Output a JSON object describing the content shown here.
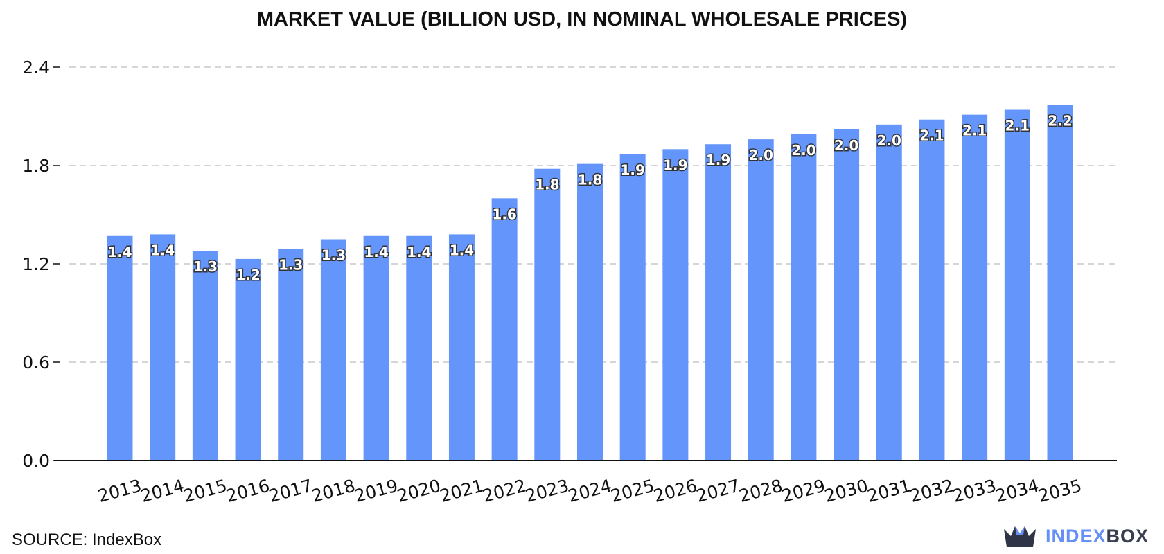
{
  "chart_data": {
    "type": "bar",
    "title": "MARKET VALUE (BILLION USD, IN NOMINAL WHOLESALE PRICES)",
    "categories": [
      "2013",
      "2014",
      "2015",
      "2016",
      "2017",
      "2018",
      "2019",
      "2020",
      "2021",
      "2022",
      "2023",
      "2024",
      "2025",
      "2026",
      "2027",
      "2028",
      "2029",
      "2030",
      "2031",
      "2032",
      "2033",
      "2034",
      "2035"
    ],
    "values": [
      1.37,
      1.38,
      1.28,
      1.23,
      1.29,
      1.35,
      1.37,
      1.37,
      1.38,
      1.6,
      1.78,
      1.81,
      1.87,
      1.9,
      1.93,
      1.96,
      1.99,
      2.02,
      2.05,
      2.08,
      2.11,
      2.14,
      2.17
    ],
    "data_labels": [
      "1.4",
      "1.4",
      "1.3",
      "1.2",
      "1.3",
      "1.3",
      "1.4",
      "1.4",
      "1.4",
      "1.6",
      "1.8",
      "1.8",
      "1.9",
      "1.9",
      "1.9",
      "2.0",
      "2.0",
      "2.0",
      "2.0",
      "2.1",
      "2.1",
      "2.1",
      "2.2"
    ],
    "xlabel": "",
    "ylabel": "",
    "ylim": [
      0,
      2.4
    ],
    "yticks": [
      "0.0",
      "0.6",
      "1.2",
      "1.8",
      "2.4"
    ],
    "ytick_values": [
      0,
      0.6,
      1.2,
      1.8,
      2.4
    ],
    "grid": true,
    "bar_color": "#6495fa"
  },
  "footer": {
    "source": "SOURCE: IndexBox",
    "brand_part1": "INDEX",
    "brand_part2": "BOX"
  }
}
